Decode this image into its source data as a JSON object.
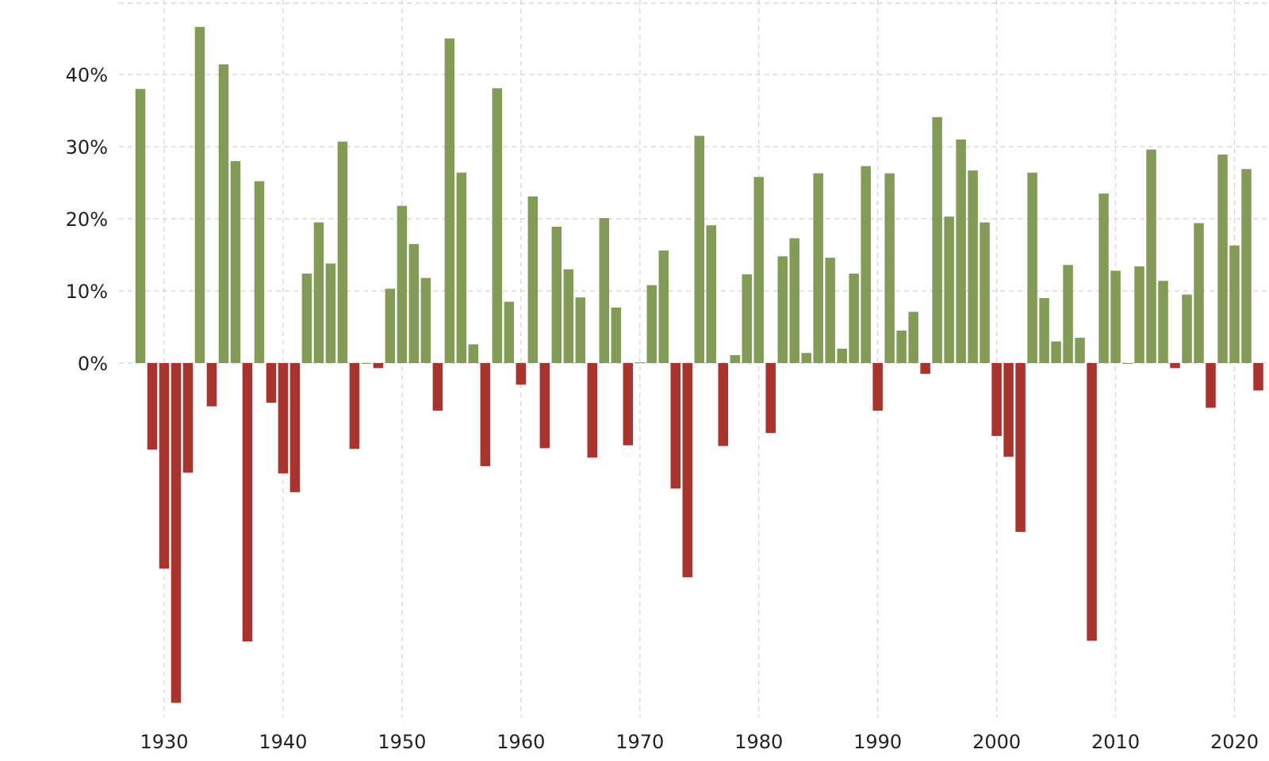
{
  "chart_data": {
    "type": "bar",
    "title": "",
    "xlabel": "",
    "ylabel": "",
    "ylim": [
      -47.5,
      50
    ],
    "xlim": [
      1926.2,
      2022.9
    ],
    "grid": true,
    "y_ticks": [
      0,
      10,
      20,
      30,
      40
    ],
    "y_tick_labels": [
      "0%",
      "10%",
      "20%",
      "30%",
      "40%"
    ],
    "x_ticks": [
      1930,
      1940,
      1950,
      1960,
      1970,
      1980,
      1990,
      2000,
      2010,
      2020
    ],
    "x_tick_labels": [
      "1930",
      "1940",
      "1950",
      "1960",
      "1970",
      "1980",
      "1990",
      "2000",
      "2010",
      "2020"
    ],
    "colors": {
      "positive": "#829b55",
      "negative": "#ab332d",
      "grid": "#d2d2d2",
      "text": "#222222",
      "background": "#ffffff"
    },
    "categories": [
      1928,
      1929,
      1930,
      1931,
      1932,
      1933,
      1934,
      1935,
      1936,
      1937,
      1938,
      1939,
      1940,
      1941,
      1942,
      1943,
      1944,
      1945,
      1946,
      1947,
      1948,
      1949,
      1950,
      1951,
      1952,
      1953,
      1954,
      1955,
      1956,
      1957,
      1958,
      1959,
      1960,
      1961,
      1962,
      1963,
      1964,
      1965,
      1966,
      1967,
      1968,
      1969,
      1970,
      1971,
      1972,
      1973,
      1974,
      1975,
      1976,
      1977,
      1978,
      1979,
      1980,
      1981,
      1982,
      1983,
      1984,
      1985,
      1986,
      1987,
      1988,
      1989,
      1990,
      1991,
      1992,
      1993,
      1994,
      1995,
      1996,
      1997,
      1998,
      1999,
      2000,
      2001,
      2002,
      2003,
      2004,
      2005,
      2006,
      2007,
      2008,
      2009,
      2010,
      2011,
      2012,
      2013,
      2014,
      2015,
      2016,
      2017,
      2018,
      2019,
      2020,
      2021,
      2022
    ],
    "values": [
      38.0,
      -12.0,
      -28.5,
      -47.1,
      -15.2,
      46.6,
      -6.0,
      41.4,
      28.0,
      -38.6,
      25.2,
      -5.5,
      -15.3,
      -17.9,
      12.4,
      19.5,
      13.8,
      30.7,
      -11.9,
      0.0,
      -0.7,
      10.3,
      21.8,
      16.5,
      11.8,
      -6.6,
      45.0,
      26.4,
      2.6,
      -14.3,
      38.1,
      8.5,
      -3.0,
      23.1,
      -11.8,
      18.9,
      13.0,
      9.1,
      -13.1,
      20.1,
      7.7,
      -11.4,
      0.1,
      10.8,
      15.6,
      -17.4,
      -29.7,
      31.5,
      19.1,
      -11.5,
      1.1,
      12.3,
      25.8,
      -9.7,
      14.8,
      17.3,
      1.4,
      26.3,
      14.6,
      2.0,
      12.4,
      27.3,
      -6.6,
      26.3,
      4.5,
      7.1,
      -1.5,
      34.1,
      20.3,
      31.0,
      26.7,
      19.5,
      -10.1,
      -13.0,
      -23.4,
      26.4,
      9.0,
      3.0,
      13.6,
      3.5,
      -38.5,
      23.5,
      12.8,
      0.0,
      13.4,
      29.6,
      11.4,
      -0.7,
      9.5,
      19.4,
      -6.2,
      28.9,
      16.3,
      26.9,
      -3.8
    ]
  }
}
